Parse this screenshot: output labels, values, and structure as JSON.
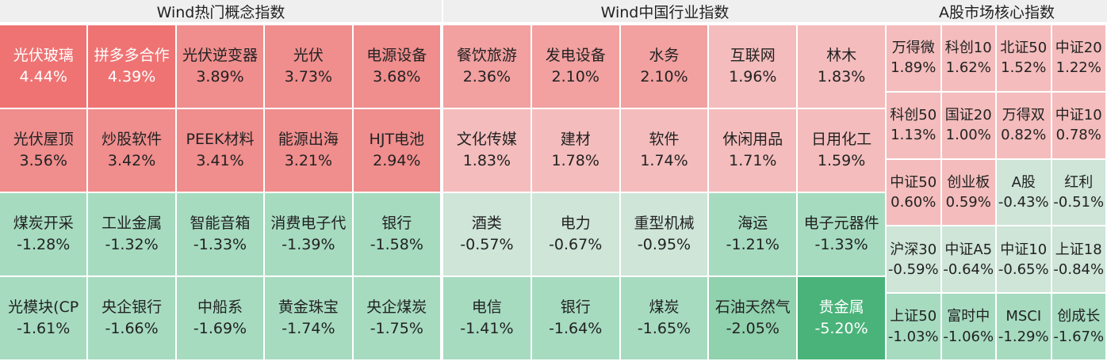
{
  "panels": [
    {
      "title": "Wind热门概念指数",
      "cells": [
        {
          "name": "光伏玻璃",
          "pct": "4.44%",
          "level": "up3"
        },
        {
          "name": "拼多多合作",
          "pct": "4.39%",
          "level": "up3"
        },
        {
          "name": "光伏逆变器",
          "pct": "3.89%",
          "level": "up2"
        },
        {
          "name": "光伏",
          "pct": "3.73%",
          "level": "up2"
        },
        {
          "name": "电源设备",
          "pct": "3.68%",
          "level": "up2"
        },
        {
          "name": "光伏屋顶",
          "pct": "3.56%",
          "level": "up2"
        },
        {
          "name": "炒股软件",
          "pct": "3.42%",
          "level": "up2"
        },
        {
          "name": "PEEK材料",
          "pct": "3.41%",
          "level": "up2"
        },
        {
          "name": "能源出海",
          "pct": "3.21%",
          "level": "up2"
        },
        {
          "name": "HJT电池",
          "pct": "2.94%",
          "level": "up2"
        },
        {
          "name": "煤炭开采",
          "pct": "-1.28%",
          "level": "dn1"
        },
        {
          "name": "工业金属",
          "pct": "-1.32%",
          "level": "dn1"
        },
        {
          "name": "智能音箱",
          "pct": "-1.33%",
          "level": "dn1"
        },
        {
          "name": "消费电子代",
          "pct": "-1.39%",
          "level": "dn1"
        },
        {
          "name": "银行",
          "pct": "-1.58%",
          "level": "dn1"
        },
        {
          "name": "光模块(CP",
          "pct": "-1.61%",
          "level": "dn1"
        },
        {
          "name": "央企银行",
          "pct": "-1.66%",
          "level": "dn1"
        },
        {
          "name": "中船系",
          "pct": "-1.69%",
          "level": "dn1"
        },
        {
          "name": "黄金珠宝",
          "pct": "-1.74%",
          "level": "dn1"
        },
        {
          "name": "央企煤炭",
          "pct": "-1.75%",
          "level": "dn1"
        }
      ]
    },
    {
      "title": "Wind中国行业指数",
      "cells": [
        {
          "name": "餐饮旅游",
          "pct": "2.36%",
          "level": "up1"
        },
        {
          "name": "发电设备",
          "pct": "2.10%",
          "level": "up1"
        },
        {
          "name": "水务",
          "pct": "2.10%",
          "level": "up1"
        },
        {
          "name": "互联网",
          "pct": "1.96%",
          "level": "up0"
        },
        {
          "name": "林木",
          "pct": "1.83%",
          "level": "up0"
        },
        {
          "name": "文化传媒",
          "pct": "1.83%",
          "level": "up0"
        },
        {
          "name": "建材",
          "pct": "1.78%",
          "level": "up0"
        },
        {
          "name": "软件",
          "pct": "1.74%",
          "level": "up0"
        },
        {
          "name": "休闲用品",
          "pct": "1.71%",
          "level": "up0"
        },
        {
          "name": "日用化工",
          "pct": "1.59%",
          "level": "up0"
        },
        {
          "name": "酒类",
          "pct": "-0.57%",
          "level": "dn0"
        },
        {
          "name": "电力",
          "pct": "-0.67%",
          "level": "dn0"
        },
        {
          "name": "重型机械",
          "pct": "-0.95%",
          "level": "dn0"
        },
        {
          "name": "海运",
          "pct": "-1.21%",
          "level": "dn1"
        },
        {
          "name": "电子元器件",
          "pct": "-1.33%",
          "level": "dn1"
        },
        {
          "name": "电信",
          "pct": "-1.41%",
          "level": "dn1"
        },
        {
          "name": "银行",
          "pct": "-1.64%",
          "level": "dn1"
        },
        {
          "name": "煤炭",
          "pct": "-1.65%",
          "level": "dn1"
        },
        {
          "name": "石油天然气",
          "pct": "-2.05%",
          "level": "dn2"
        },
        {
          "name": "贵金属",
          "pct": "-5.20%",
          "level": "dn3"
        }
      ]
    },
    {
      "title": "A股市场核心指数",
      "cells": [
        {
          "name": "万得微",
          "pct": "1.89%",
          "level": "up0"
        },
        {
          "name": "科创10",
          "pct": "1.62%",
          "level": "up0"
        },
        {
          "name": "北证50",
          "pct": "1.52%",
          "level": "up0"
        },
        {
          "name": "中证20",
          "pct": "1.22%",
          "level": "up0"
        },
        {
          "name": "科创50",
          "pct": "1.13%",
          "level": "up0"
        },
        {
          "name": "国证20",
          "pct": "1.00%",
          "level": "up0"
        },
        {
          "name": "万得双",
          "pct": "0.82%",
          "level": "up0"
        },
        {
          "name": "中证10",
          "pct": "0.78%",
          "level": "up0"
        },
        {
          "name": "中证50",
          "pct": "0.60%",
          "level": "up0"
        },
        {
          "name": "创业板",
          "pct": "0.59%",
          "level": "up0"
        },
        {
          "name": "A股",
          "pct": "-0.43%",
          "level": "dn0"
        },
        {
          "name": "红利",
          "pct": "-0.51%",
          "level": "dn0"
        },
        {
          "name": "沪深30",
          "pct": "-0.59%",
          "level": "dn0"
        },
        {
          "name": "中证A5",
          "pct": "-0.64%",
          "level": "dn0"
        },
        {
          "name": "中证10",
          "pct": "-0.65%",
          "level": "dn0"
        },
        {
          "name": "上证18",
          "pct": "-0.84%",
          "level": "dn0"
        },
        {
          "name": "上证50",
          "pct": "-1.03%",
          "level": "dn1"
        },
        {
          "name": "富时中",
          "pct": "-1.06%",
          "level": "dn1"
        },
        {
          "name": "MSCI",
          "pct": "-1.29%",
          "level": "dn1"
        },
        {
          "name": "创成长",
          "pct": "-1.67%",
          "level": "dn1"
        }
      ]
    }
  ]
}
